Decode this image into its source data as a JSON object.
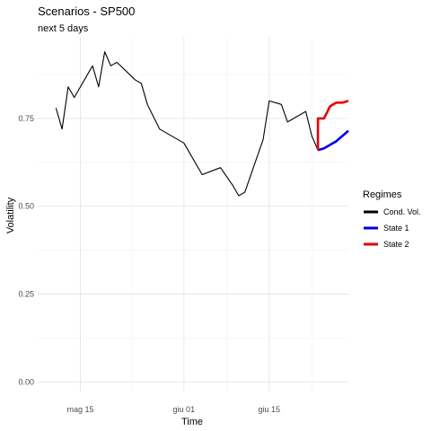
{
  "chart_data": {
    "type": "line",
    "title": "Scenarios - SP500",
    "subtitle": "next 5 days",
    "xlabel": "Time",
    "ylabel": "Volatility",
    "xlim": [
      "2020-05-08",
      "2020-06-28"
    ],
    "ylim": [
      -0.03,
      0.98
    ],
    "x_ticks": [
      {
        "date": "2020-05-15",
        "label": "mag 15"
      },
      {
        "date": "2020-06-01",
        "label": "giu 01"
      },
      {
        "date": "2020-06-15",
        "label": "giu 15"
      }
    ],
    "y_ticks": [
      {
        "value": 0.0,
        "label": "0.00"
      },
      {
        "value": 0.25,
        "label": "0.25"
      },
      {
        "value": 0.5,
        "label": "0.50"
      },
      {
        "value": 0.75,
        "label": "0.75"
      }
    ],
    "grid": true,
    "legend": {
      "title": "Regimes",
      "position": "right"
    },
    "series": [
      {
        "name": "Cond. Vol.",
        "color": "#000000",
        "points": [
          {
            "x": "2020-05-11",
            "y": 0.78
          },
          {
            "x": "2020-05-12",
            "y": 0.72
          },
          {
            "x": "2020-05-13",
            "y": 0.84
          },
          {
            "x": "2020-05-14",
            "y": 0.81
          },
          {
            "x": "2020-05-17",
            "y": 0.9
          },
          {
            "x": "2020-05-18",
            "y": 0.84
          },
          {
            "x": "2020-05-19",
            "y": 0.94
          },
          {
            "x": "2020-05-20",
            "y": 0.9
          },
          {
            "x": "2020-05-21",
            "y": 0.91
          },
          {
            "x": "2020-05-24",
            "y": 0.86
          },
          {
            "x": "2020-05-25",
            "y": 0.85
          },
          {
            "x": "2020-05-26",
            "y": 0.79
          },
          {
            "x": "2020-05-28",
            "y": 0.72
          },
          {
            "x": "2020-06-01",
            "y": 0.68
          },
          {
            "x": "2020-06-02",
            "y": 0.65
          },
          {
            "x": "2020-06-04",
            "y": 0.59
          },
          {
            "x": "2020-06-07",
            "y": 0.61
          },
          {
            "x": "2020-06-09",
            "y": 0.56
          },
          {
            "x": "2020-06-10",
            "y": 0.53
          },
          {
            "x": "2020-06-11",
            "y": 0.54
          },
          {
            "x": "2020-06-14",
            "y": 0.69
          },
          {
            "x": "2020-06-15",
            "y": 0.8
          },
          {
            "x": "2020-06-17",
            "y": 0.79
          },
          {
            "x": "2020-06-18",
            "y": 0.74
          },
          {
            "x": "2020-06-21",
            "y": 0.77
          },
          {
            "x": "2020-06-22",
            "y": 0.7
          },
          {
            "x": "2020-06-23",
            "y": 0.66
          }
        ]
      },
      {
        "name": "State 1",
        "color": "#0000e6",
        "points": [
          {
            "x": "2020-06-23",
            "y": 0.66
          },
          {
            "x": "2020-06-24",
            "y": 0.665
          },
          {
            "x": "2020-06-25",
            "y": 0.675
          },
          {
            "x": "2020-06-26",
            "y": 0.685
          },
          {
            "x": "2020-06-27",
            "y": 0.7
          },
          {
            "x": "2020-06-28",
            "y": 0.715
          }
        ]
      },
      {
        "name": "State 2",
        "color": "#e60000",
        "points": [
          {
            "x": "2020-06-23",
            "y": 0.66
          },
          {
            "x": "2020-06-23",
            "y": 0.75
          },
          {
            "x": "2020-06-24",
            "y": 0.75
          },
          {
            "x": "2020-06-25",
            "y": 0.785
          },
          {
            "x": "2020-06-26",
            "y": 0.795
          },
          {
            "x": "2020-06-27",
            "y": 0.795
          },
          {
            "x": "2020-06-28",
            "y": 0.8
          }
        ]
      }
    ]
  }
}
